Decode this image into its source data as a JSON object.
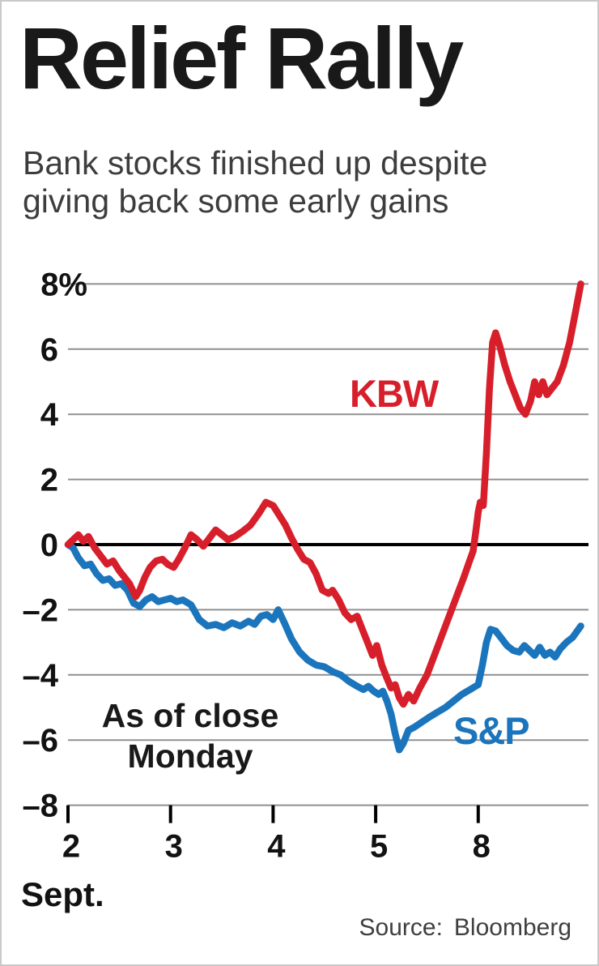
{
  "header": {
    "title": "Relief Rally",
    "subtitle_line1": "Bank stocks finished up despite",
    "subtitle_line2": "giving back some early gains"
  },
  "annotations": {
    "as_of_line1": "As of close",
    "as_of_line2": "Monday"
  },
  "footer": {
    "source_label": "Source:",
    "source_value": "Bloomberg"
  },
  "chart_data": {
    "type": "line",
    "title": "Relief Rally",
    "subtitle": "Bank stocks finished up despite giving back some early gains",
    "x_axis_label": "Sept.",
    "xlim": [
      0,
      5
    ],
    "ylim": [
      -8,
      8
    ],
    "y_unit": "%",
    "grid": true,
    "grid_color": "#909090",
    "zero_line_color": "#000000",
    "annotation": "As of close Monday",
    "source": "Source: Bloomberg",
    "y_ticks": [
      {
        "value": 8,
        "label": "8%"
      },
      {
        "value": 6,
        "label": "6"
      },
      {
        "value": 4,
        "label": "4"
      },
      {
        "value": 2,
        "label": "2"
      },
      {
        "value": 0,
        "label": "0"
      },
      {
        "value": -2,
        "label": "–2"
      },
      {
        "value": -4,
        "label": "–4"
      },
      {
        "value": -6,
        "label": "–6"
      },
      {
        "value": -8,
        "label": "–8"
      }
    ],
    "x_ticks": [
      {
        "x": 0,
        "label": "2"
      },
      {
        "x": 1,
        "label": "3"
      },
      {
        "x": 2,
        "label": "4"
      },
      {
        "x": 3,
        "label": "5"
      },
      {
        "x": 4,
        "label": "8"
      }
    ],
    "series": [
      {
        "name": "S&P",
        "color": "#1b75bc",
        "points": [
          [
            0.0,
            0.0
          ],
          [
            0.05,
            -0.1
          ],
          [
            0.1,
            -0.4
          ],
          [
            0.16,
            -0.65
          ],
          [
            0.22,
            -0.6
          ],
          [
            0.28,
            -0.9
          ],
          [
            0.34,
            -1.1
          ],
          [
            0.4,
            -1.05
          ],
          [
            0.46,
            -1.25
          ],
          [
            0.52,
            -1.2
          ],
          [
            0.58,
            -1.4
          ],
          [
            0.64,
            -1.8
          ],
          [
            0.7,
            -1.9
          ],
          [
            0.76,
            -1.7
          ],
          [
            0.82,
            -1.6
          ],
          [
            0.88,
            -1.75
          ],
          [
            0.94,
            -1.7
          ],
          [
            1.0,
            -1.65
          ],
          [
            1.06,
            -1.75
          ],
          [
            1.12,
            -1.7
          ],
          [
            1.2,
            -1.85
          ],
          [
            1.28,
            -2.3
          ],
          [
            1.36,
            -2.5
          ],
          [
            1.44,
            -2.45
          ],
          [
            1.52,
            -2.55
          ],
          [
            1.6,
            -2.4
          ],
          [
            1.68,
            -2.5
          ],
          [
            1.76,
            -2.35
          ],
          [
            1.82,
            -2.45
          ],
          [
            1.88,
            -2.2
          ],
          [
            1.94,
            -2.15
          ],
          [
            2.0,
            -2.3
          ],
          [
            2.05,
            -2.0
          ],
          [
            2.11,
            -2.4
          ],
          [
            2.18,
            -2.9
          ],
          [
            2.26,
            -3.3
          ],
          [
            2.34,
            -3.55
          ],
          [
            2.42,
            -3.7
          ],
          [
            2.5,
            -3.75
          ],
          [
            2.58,
            -3.9
          ],
          [
            2.66,
            -4.0
          ],
          [
            2.74,
            -4.2
          ],
          [
            2.82,
            -4.35
          ],
          [
            2.88,
            -4.45
          ],
          [
            2.93,
            -4.35
          ],
          [
            2.98,
            -4.5
          ],
          [
            3.03,
            -4.6
          ],
          [
            3.07,
            -4.5
          ],
          [
            3.11,
            -4.8
          ],
          [
            3.15,
            -5.2
          ],
          [
            3.19,
            -5.8
          ],
          [
            3.23,
            -6.3
          ],
          [
            3.27,
            -6.1
          ],
          [
            3.32,
            -5.7
          ],
          [
            3.38,
            -5.6
          ],
          [
            3.45,
            -5.45
          ],
          [
            3.52,
            -5.3
          ],
          [
            3.6,
            -5.15
          ],
          [
            3.68,
            -5.0
          ],
          [
            3.76,
            -4.8
          ],
          [
            3.84,
            -4.6
          ],
          [
            3.92,
            -4.45
          ],
          [
            4.0,
            -4.3
          ],
          [
            4.04,
            -3.7
          ],
          [
            4.08,
            -3.0
          ],
          [
            4.12,
            -2.6
          ],
          [
            4.17,
            -2.65
          ],
          [
            4.22,
            -2.85
          ],
          [
            4.28,
            -3.1
          ],
          [
            4.34,
            -3.25
          ],
          [
            4.4,
            -3.3
          ],
          [
            4.45,
            -3.1
          ],
          [
            4.5,
            -3.25
          ],
          [
            4.55,
            -3.4
          ],
          [
            4.6,
            -3.15
          ],
          [
            4.65,
            -3.4
          ],
          [
            4.7,
            -3.3
          ],
          [
            4.75,
            -3.45
          ],
          [
            4.8,
            -3.2
          ],
          [
            4.86,
            -3.0
          ],
          [
            4.92,
            -2.85
          ],
          [
            5.0,
            -2.5
          ]
        ]
      },
      {
        "name": "KBW",
        "color": "#d71f2b",
        "points": [
          [
            0.0,
            0.0
          ],
          [
            0.05,
            0.15
          ],
          [
            0.1,
            0.3
          ],
          [
            0.15,
            0.1
          ],
          [
            0.2,
            0.25
          ],
          [
            0.26,
            -0.1
          ],
          [
            0.32,
            -0.35
          ],
          [
            0.38,
            -0.6
          ],
          [
            0.44,
            -0.5
          ],
          [
            0.5,
            -0.8
          ],
          [
            0.55,
            -1.0
          ],
          [
            0.6,
            -1.2
          ],
          [
            0.66,
            -1.6
          ],
          [
            0.7,
            -1.4
          ],
          [
            0.75,
            -1.0
          ],
          [
            0.8,
            -0.7
          ],
          [
            0.86,
            -0.5
          ],
          [
            0.92,
            -0.45
          ],
          [
            0.97,
            -0.6
          ],
          [
            1.03,
            -0.7
          ],
          [
            1.08,
            -0.45
          ],
          [
            1.14,
            -0.1
          ],
          [
            1.2,
            0.3
          ],
          [
            1.26,
            0.15
          ],
          [
            1.32,
            -0.05
          ],
          [
            1.38,
            0.2
          ],
          [
            1.44,
            0.45
          ],
          [
            1.5,
            0.3
          ],
          [
            1.56,
            0.15
          ],
          [
            1.63,
            0.25
          ],
          [
            1.7,
            0.4
          ],
          [
            1.78,
            0.6
          ],
          [
            1.86,
            0.95
          ],
          [
            1.93,
            1.3
          ],
          [
            2.0,
            1.2
          ],
          [
            2.06,
            0.9
          ],
          [
            2.12,
            0.6
          ],
          [
            2.18,
            0.2
          ],
          [
            2.24,
            -0.15
          ],
          [
            2.3,
            -0.45
          ],
          [
            2.36,
            -0.55
          ],
          [
            2.42,
            -0.9
          ],
          [
            2.48,
            -1.4
          ],
          [
            2.54,
            -1.5
          ],
          [
            2.58,
            -1.4
          ],
          [
            2.64,
            -1.7
          ],
          [
            2.7,
            -2.1
          ],
          [
            2.76,
            -2.3
          ],
          [
            2.82,
            -2.2
          ],
          [
            2.87,
            -2.6
          ],
          [
            2.92,
            -3.0
          ],
          [
            2.97,
            -3.4
          ],
          [
            3.01,
            -3.1
          ],
          [
            3.06,
            -3.7
          ],
          [
            3.11,
            -4.1
          ],
          [
            3.15,
            -4.4
          ],
          [
            3.19,
            -4.3
          ],
          [
            3.23,
            -4.7
          ],
          [
            3.27,
            -4.9
          ],
          [
            3.32,
            -4.6
          ],
          [
            3.37,
            -4.8
          ],
          [
            3.43,
            -4.4
          ],
          [
            3.5,
            -4.0
          ],
          [
            3.56,
            -3.5
          ],
          [
            3.62,
            -3.0
          ],
          [
            3.68,
            -2.5
          ],
          [
            3.74,
            -2.0
          ],
          [
            3.8,
            -1.5
          ],
          [
            3.86,
            -1.0
          ],
          [
            3.91,
            -0.55
          ],
          [
            3.95,
            -0.2
          ],
          [
            3.98,
            0.5
          ],
          [
            4.0,
            1.0
          ],
          [
            4.02,
            1.3
          ],
          [
            4.05,
            1.2
          ],
          [
            4.08,
            2.8
          ],
          [
            4.11,
            4.8
          ],
          [
            4.14,
            6.2
          ],
          [
            4.17,
            6.5
          ],
          [
            4.21,
            6.1
          ],
          [
            4.26,
            5.5
          ],
          [
            4.31,
            5.0
          ],
          [
            4.36,
            4.6
          ],
          [
            4.41,
            4.2
          ],
          [
            4.46,
            4.0
          ],
          [
            4.51,
            4.4
          ],
          [
            4.55,
            5.0
          ],
          [
            4.59,
            4.6
          ],
          [
            4.63,
            5.0
          ],
          [
            4.67,
            4.6
          ],
          [
            4.72,
            4.8
          ],
          [
            4.77,
            5.0
          ],
          [
            4.83,
            5.5
          ],
          [
            4.89,
            6.2
          ],
          [
            4.94,
            7.0
          ],
          [
            5.0,
            8.0
          ]
        ]
      }
    ]
  }
}
